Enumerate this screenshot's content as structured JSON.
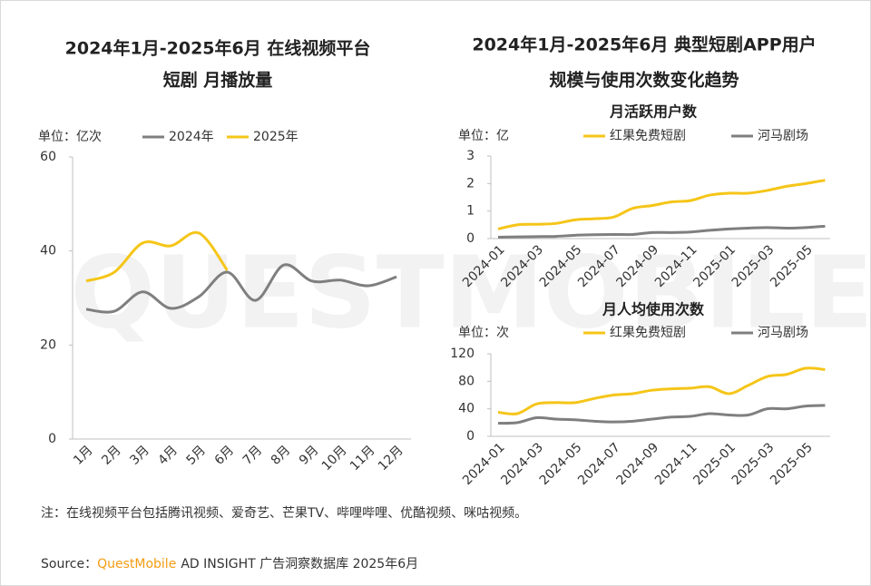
{
  "chart_data": [
    {
      "type": "line",
      "title": [
        "2024年1月-2025年6月 在线视频平台",
        "短剧 月播放量"
      ],
      "unit": "单位：亿次",
      "categories": [
        "1月",
        "2月",
        "3月",
        "4月",
        "5月",
        "6月",
        "7月",
        "8月",
        "9月",
        "10月",
        "11月",
        "12月"
      ],
      "series": [
        {
          "name": "2024年",
          "color": "#7f7f7f",
          "values": [
            27.6,
            27.2,
            31.3,
            27.8,
            30.3,
            35.5,
            29.5,
            37,
            33.6,
            33.8,
            32.6,
            34.5
          ]
        },
        {
          "name": "2025年",
          "color": "#f5c518",
          "values": [
            33.6,
            35.5,
            41.7,
            41.1,
            43.8,
            35.9,
            null,
            null,
            null,
            null,
            null,
            null
          ]
        }
      ],
      "ylim": [
        0,
        60
      ],
      "yticks": [
        0,
        20,
        40,
        60
      ]
    },
    {
      "type": "line",
      "panel_title": [
        "2024年1月-2025年6月 典型短剧APP用户",
        "规模与使用次数变化趋势"
      ],
      "title": "月活跃用户数",
      "unit": "单位：亿",
      "categories": [
        "2024-01",
        null,
        "2024-03",
        null,
        "2024-05",
        null,
        "2024-07",
        null,
        "2024-09",
        null,
        "2024-11",
        null,
        "2025-01",
        null,
        "2025-03",
        null,
        "2025-05",
        null
      ],
      "series": [
        {
          "name": "红果免费短剧",
          "color": "#f5c518",
          "values": [
            0.35,
            0.5,
            0.52,
            0.55,
            0.68,
            0.72,
            0.78,
            1.1,
            1.2,
            1.33,
            1.38,
            1.58,
            1.65,
            1.65,
            1.75,
            1.9,
            2.0,
            2.12
          ]
        },
        {
          "name": "河马剧场",
          "color": "#7f7f7f",
          "values": [
            0.05,
            0.06,
            0.07,
            0.08,
            0.12,
            0.14,
            0.15,
            0.15,
            0.22,
            0.22,
            0.24,
            0.3,
            0.35,
            0.38,
            0.4,
            0.38,
            0.4,
            0.45
          ]
        }
      ],
      "ylim": [
        0,
        3
      ],
      "yticks": [
        0,
        1,
        2,
        3
      ]
    },
    {
      "type": "line",
      "title": "月人均使用次数",
      "unit": "单位：次",
      "categories": [
        "2024-01",
        null,
        "2024-03",
        null,
        "2024-05",
        null,
        "2024-07",
        null,
        "2024-09",
        null,
        "2024-11",
        null,
        "2025-01",
        null,
        "2025-03",
        null,
        "2025-05",
        null
      ],
      "series": [
        {
          "name": "红果免费短剧",
          "color": "#f5c518",
          "values": [
            35,
            33,
            47,
            49,
            49,
            55,
            60,
            62,
            67,
            69,
            70,
            72,
            62,
            74,
            87,
            90,
            99,
            97
          ]
        },
        {
          "name": "河马剧场",
          "color": "#7f7f7f",
          "values": [
            19,
            20,
            27,
            25,
            24,
            22,
            21,
            22,
            25,
            28,
            29,
            33,
            31,
            31,
            40,
            40,
            44,
            45
          ]
        }
      ],
      "ylim": [
        0,
        120
      ],
      "yticks": [
        0,
        40,
        80,
        120
      ]
    }
  ],
  "watermark": "QUESTMOBILE",
  "note": "注：在线视频平台包括腾讯视频、爱奇艺、芒果TV、哔哩哔哩、优酷视频、咪咕视频。",
  "source": {
    "label": "Source：",
    "brand": "QuestMobile",
    "text": "AD INSIGHT 广告洞察数据库 2025年6月"
  }
}
